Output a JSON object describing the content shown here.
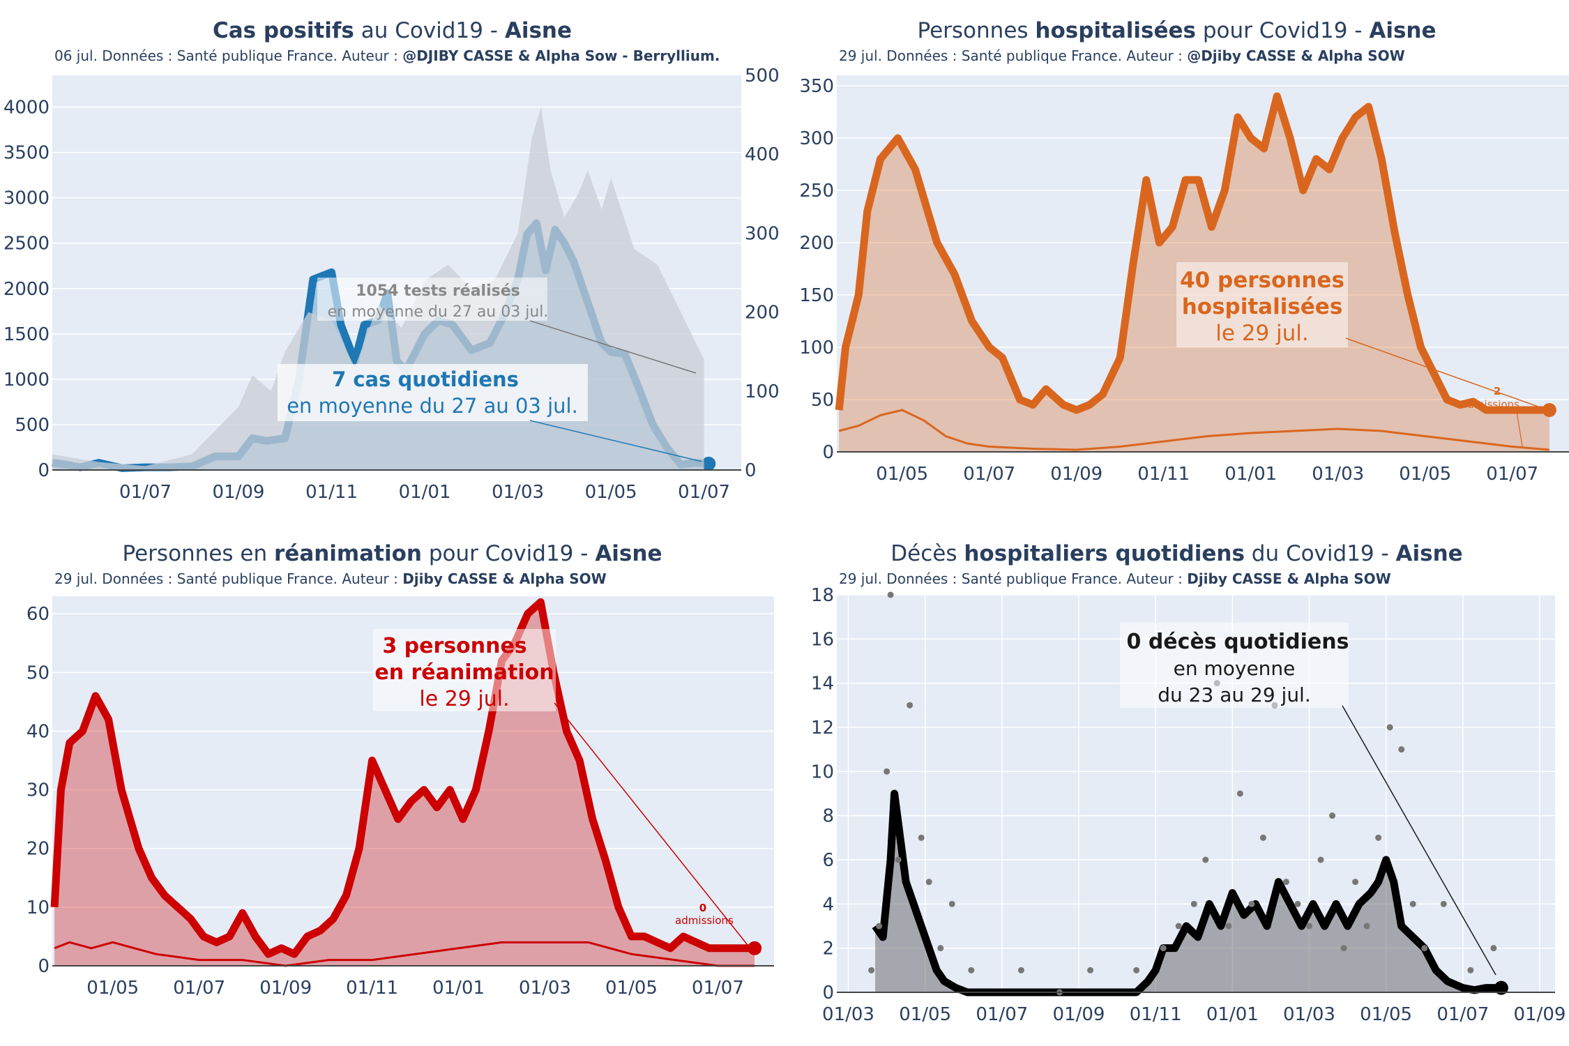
{
  "charts": [
    {
      "title_parts": [
        {
          "text": "Cas positifs",
          "bold": true
        },
        {
          "text": " au Covid19 - ",
          "bold": false
        },
        {
          "text": "Aisne",
          "bold": true
        }
      ],
      "subtitle_parts": [
        {
          "text": "06 jul. Données : Santé publique France. Auteur : ",
          "bold": false
        },
        {
          "text": "@DJIBY CASSE & Alpha Sow - Berryllium.",
          "bold": true
        }
      ],
      "annotation_main": [
        "7 cas quotidiens",
        "en moyenne du 27 au 03 jul."
      ],
      "annotation_secondary": [
        "1054 tests réalisés",
        "en moyenne du 27 au 03 jul."
      ],
      "color": "#1f77b4"
    },
    {
      "title_parts": [
        {
          "text": "Personnes ",
          "bold": false
        },
        {
          "text": "hospitalisées",
          "bold": true
        },
        {
          "text": " pour Covid19 - ",
          "bold": false
        },
        {
          "text": "Aisne",
          "bold": true
        }
      ],
      "subtitle_parts": [
        {
          "text": "29 jul. Données : Santé publique France. Auteur : ",
          "bold": false
        },
        {
          "text": "@Djiby CASSE & Alpha SOW",
          "bold": true
        }
      ],
      "annotation_main": [
        "40 personnes",
        "hospitalisées",
        "le 29 jul."
      ],
      "annotation_small": [
        "2",
        "admissions"
      ],
      "color": "#d9661e"
    },
    {
      "title_parts": [
        {
          "text": "Personnes en ",
          "bold": false
        },
        {
          "text": "réanimation",
          "bold": true
        },
        {
          "text": " pour Covid19 - ",
          "bold": false
        },
        {
          "text": "Aisne",
          "bold": true
        }
      ],
      "subtitle_parts": [
        {
          "text": "29 jul. Données : Santé publique France. Auteur : ",
          "bold": false
        },
        {
          "text": "Djiby CASSE & Alpha SOW",
          "bold": true
        }
      ],
      "annotation_main": [
        "3 personnes",
        "en réanimation",
        "le 29 jul."
      ],
      "annotation_small": [
        "0",
        "admissions"
      ],
      "color": "#cc0000"
    },
    {
      "title_parts": [
        {
          "text": "Décès ",
          "bold": false
        },
        {
          "text": "hospitaliers quotidiens",
          "bold": true
        },
        {
          "text": " du Covid19 - ",
          "bold": false
        },
        {
          "text": "Aisne",
          "bold": true
        }
      ],
      "subtitle_parts": [
        {
          "text": "29 jul. Données : Santé publique France. Auteur : ",
          "bold": false
        },
        {
          "text": "Djiby CASSE & Alpha SOW",
          "bold": true
        }
      ],
      "annotation_main": [
        "0 décès quotidiens",
        "en moyenne",
        "du 23 au 29 jul."
      ],
      "color": "#000000"
    }
  ],
  "chart_data": [
    {
      "type": "area",
      "x_unit": "months since 2020-05-01",
      "xticks": [
        2,
        4,
        6,
        8,
        10,
        12,
        14
      ],
      "xtick_labels": [
        "01/07",
        "01/09",
        "01/11",
        "01/01",
        "01/03",
        "01/05",
        "01/07"
      ],
      "xlim": [
        0,
        14.8
      ],
      "ylim": [
        0,
        4350
      ],
      "yticks": [
        0,
        500,
        1000,
        1500,
        2000,
        2500,
        3000,
        3500,
        4000
      ],
      "ylim_right": [
        0,
        500
      ],
      "yticks_right": [
        0,
        100,
        200,
        300,
        400,
        500
      ],
      "series": [
        {
          "kind": "line",
          "x": [
            0,
            0.3,
            0.6,
            1,
            1.5,
            2,
            2.5,
            3,
            3.5,
            4,
            4.3,
            4.6,
            5,
            5.3,
            5.6,
            5.85,
            6,
            6.2,
            6.5,
            6.7,
            7,
            7.2,
            7.4,
            7.6,
            7.8,
            8,
            8.3,
            8.6,
            9,
            9.4,
            9.7,
            10,
            10.2,
            10.4,
            10.6,
            10.8,
            11,
            11.2,
            11.4,
            11.6,
            11.8,
            12,
            12.3,
            12.6,
            12.9,
            13.2,
            13.5,
            13.8,
            14.1
          ],
          "values": [
            80,
            60,
            30,
            80,
            20,
            30,
            30,
            40,
            150,
            150,
            350,
            320,
            350,
            1000,
            2100,
            2150,
            2180,
            1600,
            1200,
            1600,
            1650,
            1950,
            1200,
            1100,
            1300,
            1500,
            1650,
            1600,
            1320,
            1400,
            1700,
            2100,
            2600,
            2720,
            2200,
            2650,
            2500,
            2300,
            2000,
            1700,
            1400,
            1300,
            1280,
            900,
            500,
            250,
            60,
            80,
            70
          ]
        },
        {
          "kind": "bars_secondary",
          "x": [
            0,
            1,
            2,
            3,
            3.5,
            4,
            4.3,
            4.7,
            5,
            5.5,
            6,
            6.5,
            7,
            7.5,
            8,
            8.5,
            9,
            9.5,
            10,
            10.3,
            10.5,
            10.7,
            11,
            11.3,
            11.5,
            11.8,
            12,
            12.5,
            13,
            13.5,
            14
          ],
          "values": [
            20,
            10,
            5,
            20,
            50,
            80,
            120,
            100,
            150,
            200,
            190,
            130,
            210,
            180,
            240,
            260,
            230,
            240,
            300,
            420,
            460,
            380,
            320,
            350,
            380,
            330,
            370,
            280,
            260,
            200,
            140
          ]
        }
      ]
    },
    {
      "type": "area",
      "x_unit": "months since 2020-03-01",
      "xticks": [
        2,
        4,
        6,
        8,
        10,
        12,
        14,
        16
      ],
      "xtick_labels": [
        "01/05",
        "01/07",
        "01/09",
        "01/11",
        "01/01",
        "01/03",
        "01/05",
        "01/07"
      ],
      "xlim": [
        0.5,
        17.3
      ],
      "ylim": [
        0,
        360
      ],
      "yticks": [
        0,
        50,
        100,
        150,
        200,
        250,
        300,
        350
      ],
      "series": [
        {
          "kind": "line",
          "x": [
            0.55,
            0.7,
            1,
            1.2,
            1.5,
            1.9,
            2.3,
            2.8,
            3.2,
            3.6,
            4,
            4.3,
            4.7,
            5,
            5.3,
            5.7,
            6,
            6.3,
            6.6,
            7,
            7.3,
            7.6,
            7.9,
            8.2,
            8.5,
            8.8,
            9.1,
            9.4,
            9.7,
            10,
            10.3,
            10.6,
            10.9,
            11.2,
            11.5,
            11.8,
            12.1,
            12.4,
            12.7,
            13,
            13.3,
            13.6,
            13.9,
            14.2,
            14.5,
            14.8,
            15.1,
            15.4,
            15.7,
            16,
            16.3,
            16.6,
            16.85
          ],
          "values": [
            40,
            100,
            150,
            230,
            280,
            300,
            270,
            200,
            170,
            125,
            100,
            90,
            50,
            45,
            60,
            45,
            40,
            45,
            55,
            90,
            180,
            260,
            200,
            215,
            260,
            260,
            215,
            250,
            320,
            300,
            290,
            340,
            300,
            250,
            280,
            270,
            300,
            320,
            330,
            280,
            210,
            150,
            100,
            75,
            50,
            45,
            48,
            40,
            40,
            40,
            40,
            40,
            40
          ]
        },
        {
          "kind": "thin_line",
          "x": [
            0.55,
            1,
            1.5,
            2,
            2.5,
            3,
            3.5,
            4,
            5,
            6,
            7,
            8,
            9,
            10,
            11,
            12,
            13,
            14,
            15,
            16,
            16.85
          ],
          "values": [
            20,
            25,
            35,
            40,
            30,
            15,
            8,
            5,
            3,
            2,
            5,
            10,
            15,
            18,
            20,
            22,
            20,
            15,
            10,
            5,
            2
          ]
        }
      ]
    },
    {
      "type": "area",
      "x_unit": "months since 2020-03-01",
      "xticks": [
        2,
        4,
        6,
        8,
        10,
        12,
        14,
        16
      ],
      "xtick_labels": [
        "01/05",
        "01/07",
        "01/09",
        "01/11",
        "01/01",
        "01/03",
        "01/05",
        "01/07"
      ],
      "xlim": [
        0.6,
        17.3
      ],
      "ylim": [
        0,
        63
      ],
      "yticks": [
        0,
        10,
        20,
        30,
        40,
        50,
        60
      ],
      "series": [
        {
          "kind": "line",
          "x": [
            0.65,
            0.8,
            1,
            1.3,
            1.6,
            1.9,
            2.2,
            2.6,
            2.9,
            3.2,
            3.5,
            3.8,
            4.1,
            4.4,
            4.7,
            5,
            5.3,
            5.6,
            5.9,
            6.2,
            6.5,
            6.8,
            7.1,
            7.4,
            7.7,
            8,
            8.3,
            8.6,
            8.9,
            9.2,
            9.5,
            9.8,
            10.1,
            10.4,
            10.7,
            11,
            11.3,
            11.6,
            11.9,
            12.2,
            12.5,
            12.8,
            13.1,
            13.4,
            13.7,
            14,
            14.3,
            14.6,
            14.9,
            15.2,
            15.5,
            15.8,
            16.1,
            16.3,
            16.5,
            16.7,
            16.85
          ],
          "values": [
            10,
            30,
            38,
            40,
            46,
            42,
            30,
            20,
            15,
            12,
            10,
            8,
            5,
            4,
            5,
            9,
            5,
            2,
            3,
            2,
            5,
            6,
            8,
            12,
            20,
            35,
            30,
            25,
            28,
            30,
            27,
            30,
            25,
            30,
            40,
            52,
            55,
            60,
            62,
            50,
            40,
            35,
            25,
            18,
            10,
            5,
            5,
            4,
            3,
            5,
            4,
            3,
            3,
            3,
            3,
            3,
            3
          ]
        },
        {
          "kind": "thin_line",
          "x": [
            0.65,
            1,
            1.5,
            2,
            2.5,
            3,
            4,
            5,
            6,
            7,
            8,
            9,
            10,
            11,
            12,
            13,
            14,
            15,
            16,
            16.85
          ],
          "values": [
            3,
            4,
            3,
            4,
            3,
            2,
            1,
            1,
            0,
            1,
            1,
            2,
            3,
            4,
            4,
            4,
            2,
            1,
            0,
            0
          ]
        }
      ]
    },
    {
      "type": "line",
      "x_unit": "months since 2020-03-01",
      "xticks": [
        0,
        2,
        4,
        6,
        8,
        10,
        12,
        14,
        16,
        18
      ],
      "xtick_labels": [
        "01/03",
        "01/05",
        "01/07",
        "01/09",
        "01/11",
        "01/01",
        "01/03",
        "01/05",
        "01/07",
        "01/09"
      ],
      "xlim": [
        -0.3,
        18.4
      ],
      "ylim": [
        0,
        18
      ],
      "yticks": [
        0,
        2,
        4,
        6,
        8,
        10,
        12,
        14,
        16,
        18
      ],
      "series": [
        {
          "kind": "line",
          "x": [
            0.7,
            0.9,
            1.1,
            1.2,
            1.35,
            1.5,
            1.7,
            1.9,
            2.1,
            2.3,
            2.5,
            2.8,
            3.1,
            3.5,
            4,
            4.5,
            5,
            5.5,
            6,
            6.5,
            7,
            7.5,
            7.8,
            8,
            8.2,
            8.5,
            8.8,
            9.1,
            9.4,
            9.7,
            10,
            10.3,
            10.6,
            10.9,
            11.2,
            11.5,
            11.8,
            12.1,
            12.4,
            12.7,
            13,
            13.3,
            13.6,
            13.8,
            14,
            14.2,
            14.4,
            14.7,
            15,
            15.3,
            15.6,
            16,
            16.3,
            16.6,
            17
          ],
          "values": [
            3,
            2.5,
            6,
            9,
            7,
            5,
            4,
            3,
            2,
            1,
            0.5,
            0.2,
            0,
            0,
            0,
            0,
            0,
            0,
            0,
            0,
            0,
            0,
            0.5,
            1,
            2,
            2,
            3,
            2.5,
            4,
            3,
            4.5,
            3.5,
            4,
            3,
            5,
            4,
            3,
            4,
            3,
            4,
            3,
            4,
            4.5,
            5,
            6,
            5,
            3,
            2.5,
            2,
            1,
            0.5,
            0.2,
            0.1,
            0.2,
            0.2
          ]
        },
        {
          "kind": "scatter",
          "x": [
            0.6,
            0.8,
            1,
            1.1,
            1.3,
            1.6,
            1.9,
            2.1,
            2.4,
            2.7,
            3.2,
            4.5,
            5.5,
            6.3,
            7.5,
            8.2,
            8.6,
            9.0,
            9.3,
            9.6,
            9.9,
            10.2,
            10.5,
            10.8,
            11.1,
            11.4,
            11.7,
            12,
            12.3,
            12.6,
            12.9,
            13.2,
            13.5,
            13.8,
            14.1,
            14.4,
            14.7,
            15,
            15.5,
            16.2,
            16.8
          ],
          "values": [
            1,
            3,
            10,
            18,
            6,
            13,
            7,
            5,
            2,
            4,
            1,
            1,
            0,
            1,
            1,
            2,
            3,
            4,
            6,
            14,
            3,
            9,
            4,
            7,
            13,
            5,
            4,
            3,
            6,
            8,
            2,
            5,
            3,
            7,
            12,
            11,
            4,
            2,
            4,
            1,
            2
          ]
        }
      ]
    }
  ]
}
